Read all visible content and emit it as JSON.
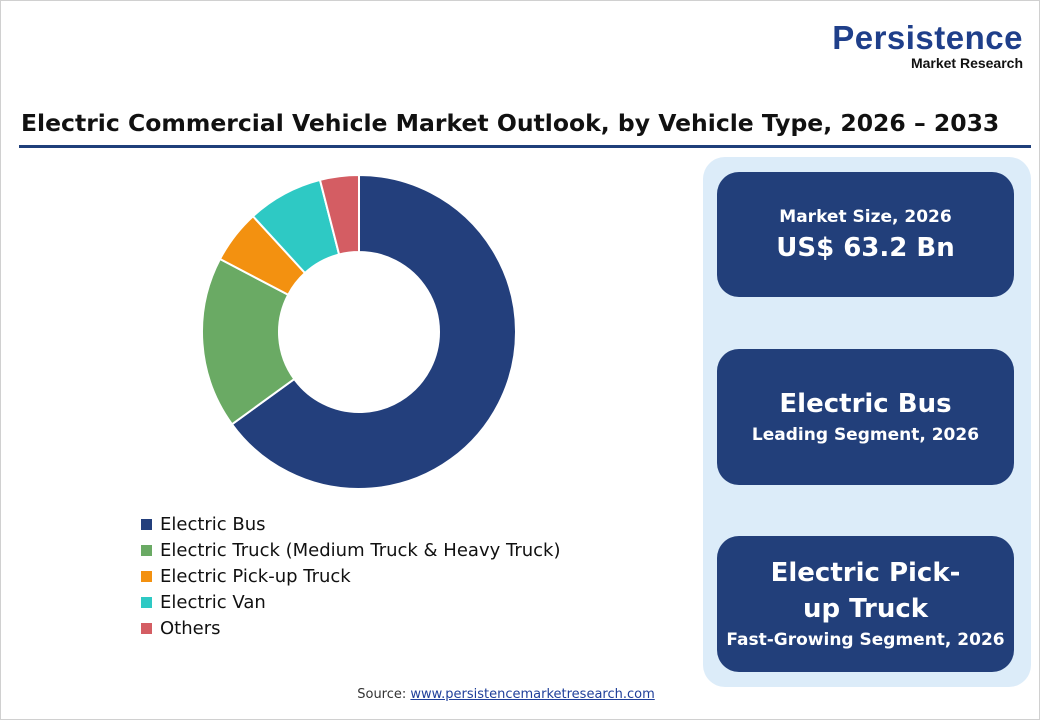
{
  "logo": {
    "line1": "Persistence",
    "line2": "Market Research"
  },
  "title": "Electric Commercial Vehicle Market Outlook, by Vehicle Type, 2026 – 2033",
  "chart_data": {
    "type": "pie",
    "donut": true,
    "title": "Electric Commercial Vehicle Market Outlook, by Vehicle Type, 2026 – 2033",
    "legend_position": "bottom-left",
    "categories": [
      "Electric Bus",
      "Electric Truck (Medium Truck & Heavy Truck)",
      "Electric Pick-up Truck",
      "Electric Van",
      "Others"
    ],
    "values": [
      65.0,
      17.7,
      5.5,
      7.8,
      4.0
    ],
    "colors": [
      "#233f7c",
      "#6aaa64",
      "#f39110",
      "#2ec9c4",
      "#d45d63"
    ]
  },
  "cards": [
    {
      "top": "Market Size, 2026",
      "main": "US$ 63.2 Bn"
    },
    {
      "main": "Electric Bus",
      "sub": "Leading Segment, 2026"
    },
    {
      "main": "Electric Pick-up Truck",
      "sub": "Fast-Growing Segment, 2026"
    }
  ],
  "source": {
    "label": "Source:",
    "link": "www.persistencemarketresearch.com"
  }
}
